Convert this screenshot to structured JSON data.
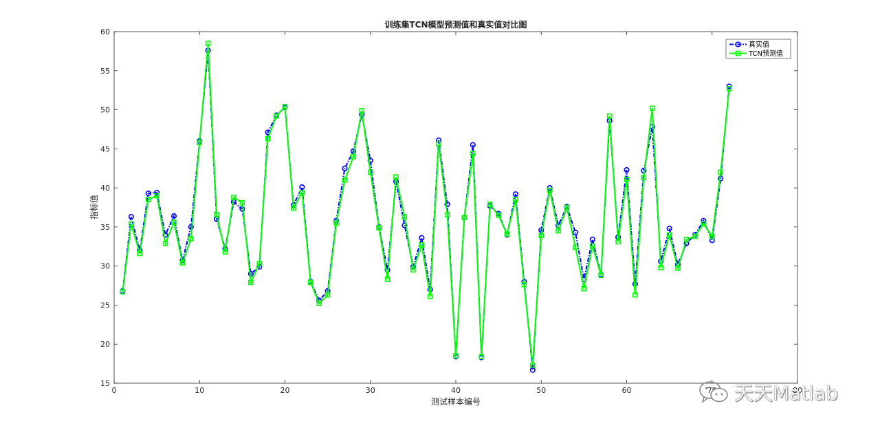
{
  "chart_data": {
    "type": "line",
    "title": "训练集TCN模型预测值和真实值对比图",
    "xlabel": "测试样本编号",
    "ylabel": "指标值",
    "xlim": [
      0,
      80
    ],
    "ylim": [
      15,
      60
    ],
    "xticks": [
      0,
      10,
      20,
      30,
      40,
      50,
      60,
      70,
      80
    ],
    "yticks": [
      15,
      20,
      25,
      30,
      35,
      40,
      45,
      50,
      55,
      60
    ],
    "grid": false,
    "legend_position": "top-right",
    "series": [
      {
        "name": "真实值",
        "color": "#0000ff",
        "marker": "circle",
        "line_style": "dash-dot",
        "values": [
          26.8,
          36.3,
          32.0,
          39.3,
          39.4,
          34.0,
          36.4,
          30.7,
          35.0,
          46.0,
          57.6,
          36.0,
          32.2,
          38.2,
          37.3,
          29.0,
          29.9,
          47.1,
          49.3,
          50.3,
          37.8,
          40.1,
          28.0,
          25.6,
          26.8,
          35.8,
          42.5,
          44.7,
          49.4,
          43.5,
          35.0,
          29.5,
          40.8,
          35.2,
          29.9,
          33.6,
          27.0,
          46.1,
          37.9,
          18.4,
          36.2,
          45.5,
          18.3,
          37.7,
          36.7,
          34.0,
          39.2,
          28.0,
          16.7,
          34.6,
          40.0,
          35.2,
          37.6,
          34.3,
          28.3,
          33.4,
          28.9,
          48.6,
          33.7,
          42.3,
          27.7,
          42.2,
          47.8,
          30.6,
          34.8,
          30.2,
          32.9,
          34.0,
          35.8,
          33.3,
          41.2,
          53.0
        ]
      },
      {
        "name": "TCN预测值",
        "color": "#00ff00",
        "marker": "square",
        "line_style": "solid",
        "values": [
          26.7,
          35.4,
          31.6,
          38.5,
          39.0,
          32.9,
          35.6,
          30.4,
          33.5,
          45.8,
          58.5,
          36.6,
          31.8,
          38.8,
          38.1,
          27.9,
          30.3,
          46.3,
          49.2,
          50.4,
          37.4,
          39.4,
          27.9,
          25.2,
          26.3,
          35.5,
          41.0,
          44.0,
          49.9,
          42.0,
          34.9,
          28.3,
          41.4,
          36.3,
          29.5,
          32.7,
          26.1,
          45.6,
          36.6,
          18.5,
          36.2,
          44.4,
          18.4,
          37.9,
          36.5,
          34.1,
          38.5,
          27.6,
          17.3,
          33.9,
          39.7,
          34.5,
          37.5,
          32.4,
          27.1,
          32.6,
          28.8,
          49.2,
          33.1,
          41.1,
          26.3,
          41.3,
          50.2,
          29.8,
          34.0,
          29.7,
          33.4,
          33.8,
          35.4,
          33.8,
          42.0,
          52.7
        ]
      }
    ]
  },
  "watermark": {
    "text": "天天Matlab",
    "icon": "wechat-icon"
  }
}
